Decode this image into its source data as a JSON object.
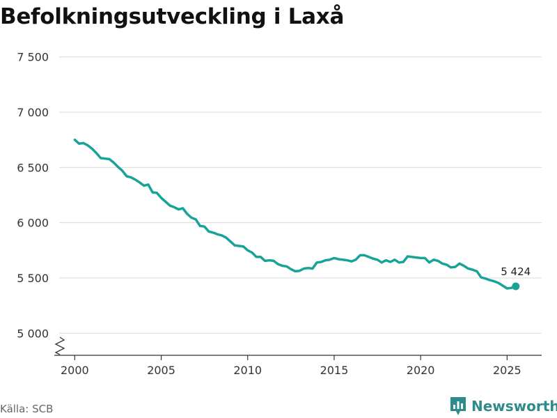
{
  "title": "Befolkningsutveckling i Laxå",
  "source": "Källa: SCB",
  "brand": "Newsworthy",
  "colors": {
    "line": "#17a398",
    "grid": "#d9d9d9",
    "text": "#333333",
    "brand": "#2e8b8b"
  },
  "chart_data": {
    "type": "line",
    "title": "Befolkningsutveckling i Laxå",
    "xlabel": "",
    "ylabel": "",
    "xlim": [
      1999.1,
      2027.0
    ],
    "ylim": [
      4800,
      7700
    ],
    "axis_break": true,
    "x_ticks": [
      2000,
      2005,
      2010,
      2015,
      2020,
      2025
    ],
    "x_tick_labels": [
      "2000",
      "2005",
      "2010",
      "2015",
      "2020",
      "2025"
    ],
    "y_ticks": [
      5000,
      5500,
      6000,
      6500,
      7000,
      7500
    ],
    "y_tick_labels": [
      "5 000",
      "5 500",
      "6 000",
      "6 500",
      "7 000",
      "7 500"
    ],
    "last_point_label": "5 424",
    "series": [
      {
        "name": "Befolkning",
        "x": [
          2000.0,
          2000.25,
          2000.5,
          2000.75,
          2001.0,
          2001.25,
          2001.5,
          2001.75,
          2002.0,
          2002.25,
          2002.5,
          2002.75,
          2003.0,
          2003.25,
          2003.5,
          2003.75,
          2004.0,
          2004.25,
          2004.5,
          2004.75,
          2005.0,
          2005.25,
          2005.5,
          2005.75,
          2006.0,
          2006.25,
          2006.5,
          2006.75,
          2007.0,
          2007.25,
          2007.5,
          2007.75,
          2008.0,
          2008.25,
          2008.5,
          2008.75,
          2009.0,
          2009.25,
          2009.5,
          2009.75,
          2010.0,
          2010.25,
          2010.5,
          2010.75,
          2011.0,
          2011.25,
          2011.5,
          2011.75,
          2012.0,
          2012.25,
          2012.5,
          2012.75,
          2013.0,
          2013.25,
          2013.5,
          2013.75,
          2014.0,
          2014.25,
          2014.5,
          2014.75,
          2015.0,
          2015.25,
          2015.5,
          2015.75,
          2016.0,
          2016.25,
          2016.5,
          2016.75,
          2017.0,
          2017.25,
          2017.5,
          2017.75,
          2018.0,
          2018.25,
          2018.5,
          2018.75,
          2019.0,
          2019.25,
          2019.5,
          2019.75,
          2020.0,
          2020.25,
          2020.5,
          2020.75,
          2021.0,
          2021.25,
          2021.5,
          2021.75,
          2022.0,
          2022.25,
          2022.5,
          2022.75,
          2023.0,
          2023.25,
          2023.5,
          2023.75,
          2024.0,
          2024.25,
          2024.5,
          2024.75,
          2025.0,
          2025.25,
          2025.5
        ],
        "values": [
          6750,
          6715,
          6720,
          6700,
          6670,
          6630,
          6585,
          6580,
          6575,
          6545,
          6505,
          6470,
          6420,
          6410,
          6390,
          6365,
          6335,
          6345,
          6275,
          6270,
          6225,
          6190,
          6155,
          6140,
          6120,
          6130,
          6080,
          6045,
          6030,
          5970,
          5965,
          5920,
          5910,
          5895,
          5885,
          5865,
          5830,
          5795,
          5790,
          5785,
          5750,
          5730,
          5690,
          5690,
          5655,
          5660,
          5655,
          5625,
          5610,
          5605,
          5580,
          5560,
          5565,
          5585,
          5590,
          5585,
          5640,
          5645,
          5660,
          5665,
          5680,
          5670,
          5665,
          5660,
          5650,
          5665,
          5705,
          5705,
          5690,
          5675,
          5665,
          5640,
          5660,
          5645,
          5665,
          5640,
          5645,
          5695,
          5690,
          5685,
          5680,
          5680,
          5640,
          5665,
          5655,
          5630,
          5620,
          5595,
          5600,
          5630,
          5610,
          5585,
          5575,
          5560,
          5505,
          5495,
          5480,
          5470,
          5455,
          5430,
          5405,
          5410,
          5424
        ]
      }
    ]
  }
}
